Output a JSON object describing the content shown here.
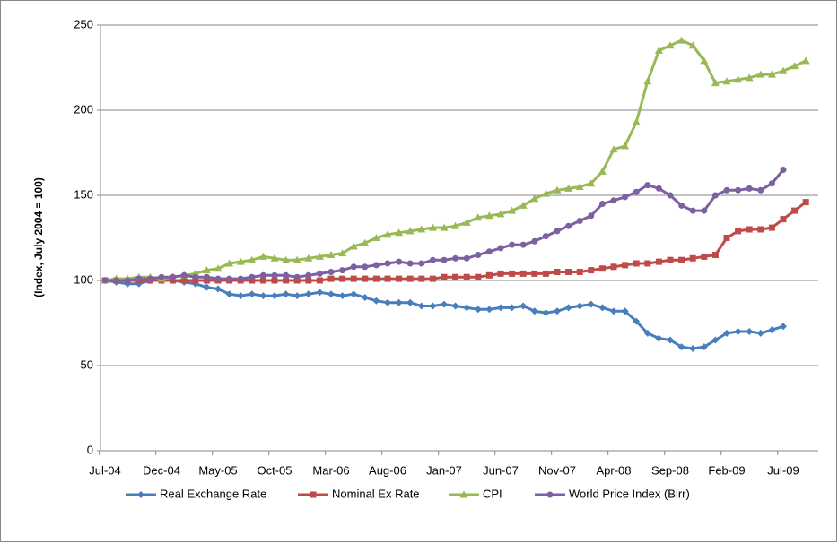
{
  "chart_data": {
    "type": "line",
    "y_label": "(Index, July 2004 = 100)",
    "categories": [
      "Jul-04",
      null,
      null,
      null,
      null,
      "Dec-04",
      null,
      null,
      null,
      null,
      "May-05",
      null,
      null,
      null,
      null,
      "Oct-05",
      null,
      null,
      null,
      null,
      "Mar-06",
      null,
      null,
      null,
      null,
      "Aug-06",
      null,
      null,
      null,
      null,
      "Jan-07",
      null,
      null,
      null,
      null,
      "Jun-07",
      null,
      null,
      null,
      null,
      "Nov-07",
      null,
      null,
      null,
      null,
      "Apr-08",
      null,
      null,
      null,
      null,
      "Sep-08",
      null,
      null,
      null,
      null,
      "Feb-09",
      null,
      null,
      null,
      null,
      "Jul-09",
      null,
      null
    ],
    "ylim": [
      0,
      250
    ],
    "yticks": [
      0,
      50,
      100,
      150,
      200,
      250
    ],
    "grid": true,
    "legend": "bottom",
    "series": [
      {
        "name": "Real Exchange  Rate",
        "color": "#4a7ebb",
        "marker": "diamond",
        "values": [
          100,
          99,
          98,
          98,
          100,
          101,
          100,
          99,
          98,
          96,
          95,
          92,
          91,
          92,
          91,
          91,
          92,
          91,
          92,
          93,
          92,
          91,
          92,
          90,
          88,
          87,
          87,
          87,
          85,
          85,
          86,
          85,
          84,
          83,
          83,
          84,
          84,
          85,
          82,
          81,
          82,
          84,
          85,
          86,
          84,
          82,
          82,
          76,
          69,
          66,
          65,
          61,
          60,
          61,
          65,
          69,
          70,
          70,
          69,
          71,
          73,
          null,
          null
        ]
      },
      {
        "name": "Nominal Ex Rate",
        "color": "#be4b48",
        "marker": "square",
        "values": [
          100,
          100,
          100,
          100,
          100,
          100,
          100,
          100,
          100,
          100,
          100,
          100,
          100,
          100,
          100,
          100,
          100,
          100,
          100,
          100,
          101,
          101,
          101,
          101,
          101,
          101,
          101,
          101,
          101,
          101,
          102,
          102,
          102,
          102,
          103,
          104,
          104,
          104,
          104,
          104,
          105,
          105,
          105,
          106,
          107,
          108,
          109,
          110,
          110,
          111,
          112,
          112,
          113,
          114,
          115,
          125,
          129,
          130,
          130,
          131,
          136,
          141,
          146
        ]
      },
      {
        "name": "CPI",
        "color": "#98b954",
        "marker": "triangle",
        "values": [
          100,
          101,
          101,
          102,
          102,
          101,
          102,
          103,
          104,
          106,
          107,
          110,
          111,
          112,
          114,
          113,
          112,
          112,
          113,
          114,
          115,
          116,
          120,
          122,
          125,
          127,
          128,
          129,
          130,
          131,
          131,
          132,
          134,
          137,
          138,
          139,
          141,
          144,
          148,
          151,
          153,
          154,
          155,
          157,
          164,
          177,
          179,
          193,
          217,
          235,
          238,
          241,
          238,
          229,
          216,
          217,
          218,
          219,
          221,
          221,
          223,
          226,
          229
        ]
      },
      {
        "name": "World Price Index (Birr)",
        "color": "#7d60a0",
        "marker": "circle",
        "values": [
          100,
          100,
          100,
          101,
          101,
          102,
          102,
          103,
          102,
          102,
          101,
          101,
          101,
          102,
          103,
          103,
          103,
          102,
          103,
          104,
          105,
          106,
          108,
          108,
          109,
          110,
          111,
          110,
          110,
          112,
          112,
          113,
          113,
          115,
          117,
          119,
          121,
          121,
          123,
          126,
          129,
          132,
          135,
          138,
          145,
          147,
          149,
          152,
          156,
          154,
          150,
          144,
          141,
          141,
          150,
          153,
          153,
          154,
          153,
          157,
          165,
          null,
          null
        ]
      }
    ]
  }
}
